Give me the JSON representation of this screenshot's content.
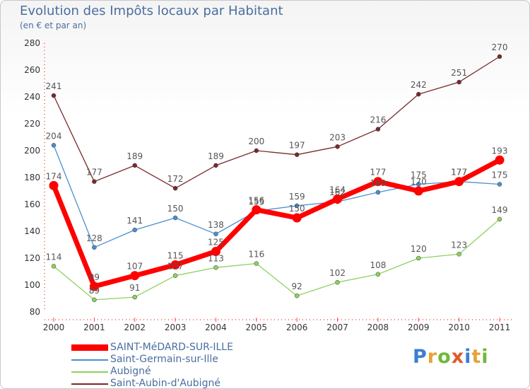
{
  "title": "Evolution des Impôts locaux par Habitant",
  "subtitle": "(en € et par an)",
  "logo": {
    "letters": [
      {
        "ch": "P",
        "color": "#3a7fd0"
      },
      {
        "ch": "r",
        "color": "#e8a23a"
      },
      {
        "ch": "o",
        "color": "#6fb83a"
      },
      {
        "ch": "x",
        "color": "#e05a2a"
      },
      {
        "ch": "i",
        "color": "#3a7fd0"
      },
      {
        "ch": "t",
        "color": "#e8a23a"
      },
      {
        "ch": "i",
        "color": "#6fb83a"
      }
    ]
  },
  "chart_data": {
    "type": "line",
    "title": "Evolution des Impôts locaux par Habitant",
    "subtitle": "(en € et par an)",
    "xlabel": "",
    "ylabel": "",
    "x": [
      "2000",
      "2001",
      "2002",
      "2003",
      "2004",
      "2005",
      "2006",
      "2007",
      "2008",
      "2009",
      "2010",
      "2011"
    ],
    "ylim": [
      80,
      280
    ],
    "yticks": [
      80,
      100,
      120,
      140,
      160,
      180,
      200,
      220,
      240,
      260,
      280
    ],
    "grid": false,
    "legend_position": "bottom-left",
    "series": [
      {
        "name": "SAINT-MéDARD-SUR-ILLE",
        "color": "#ff0000",
        "values": [
          174,
          99,
          107,
          115,
          125,
          156,
          150,
          164,
          177,
          170,
          177,
          193
        ]
      },
      {
        "name": "Saint-Germain-sur-Ille",
        "color": "#4a8fd0",
        "values": [
          204,
          128,
          141,
          150,
          138,
          155,
          159,
          162,
          169,
          175,
          177,
          175
        ]
      },
      {
        "name": "Aubigné",
        "color": "#8fd060",
        "values": [
          114,
          89,
          91,
          107,
          113,
          116,
          92,
          102,
          108,
          120,
          123,
          149
        ]
      },
      {
        "name": "Saint-Aubin-d'Aubigné",
        "color": "#7a2a2a",
        "values": [
          241,
          177,
          189,
          172,
          189,
          200,
          197,
          203,
          216,
          242,
          251,
          270
        ]
      }
    ]
  }
}
